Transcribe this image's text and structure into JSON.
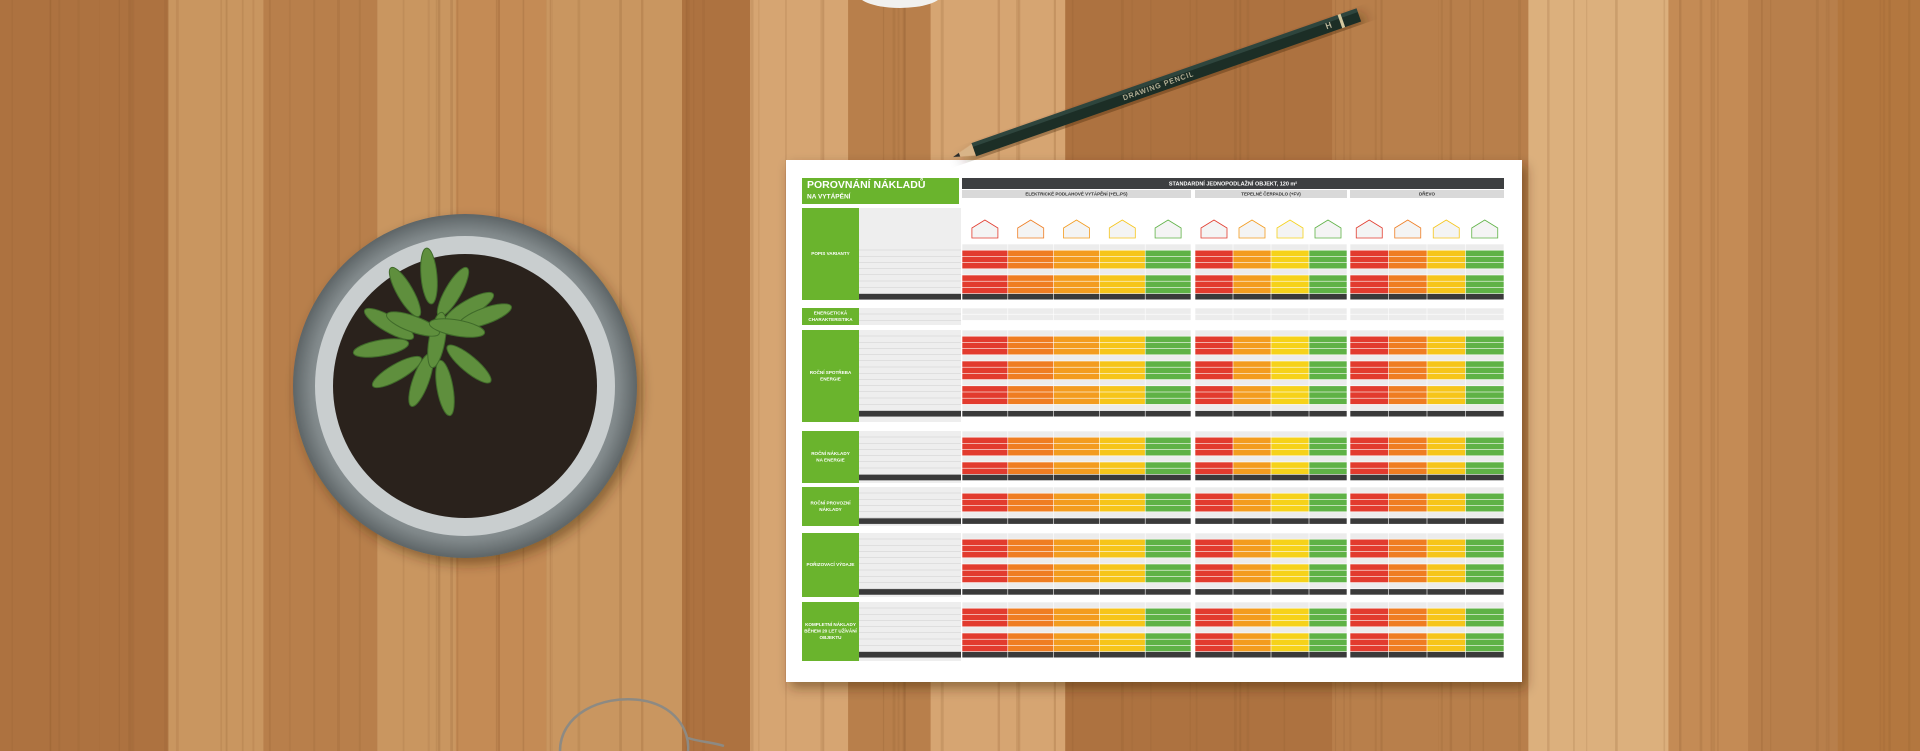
{
  "document": {
    "title": "POROVNÁNÍ NÁKLADŮ",
    "subtitle": "NA VYTÁPĚNÍ",
    "header": "STANDARDNÍ JEDNOPODLAŽNÍ OBJEKT, 120 m²",
    "groups": [
      "ELEKTRICKÉ PODLAHOVÉ VYTÁPĚNÍ (+EL.PS)",
      "TEPELNÉ ČERPADLO (+FV)",
      "DŘEVO"
    ],
    "sections": [
      {
        "lines": [
          "POPIS VARIANTY"
        ]
      },
      {
        "lines": [
          "ENERGETICKÁ",
          "CHARAKTERISTIKA"
        ]
      },
      {
        "lines": [
          "ROČNÍ SPOTŘEBA",
          "ENERGIE"
        ]
      },
      {
        "lines": [
          "ROČNÍ NÁKLADY",
          "NA ENERGIE"
        ]
      },
      {
        "lines": [
          "ROČNÍ PROVOZNÍ",
          "NÁKLADY"
        ]
      },
      {
        "lines": [
          "POŘIZOVACÍ VÝDAJE"
        ]
      },
      {
        "lines": [
          "KOMPLETNÍ NÁKLADY",
          "BĚHEM 20 LET UŽÍVÁNÍ",
          "OBJEKTU"
        ]
      }
    ]
  },
  "pencil": {
    "brand": "DRAWING PENCIL",
    "grade": "H"
  }
}
